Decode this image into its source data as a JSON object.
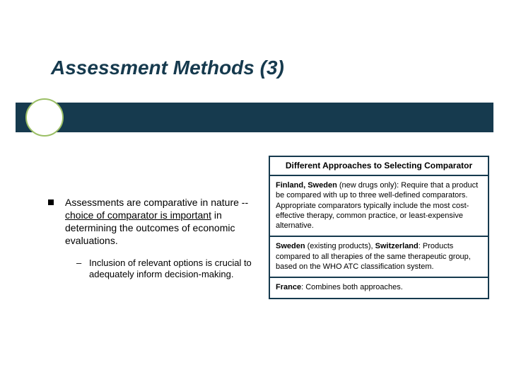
{
  "colors": {
    "dark": "#163a4e",
    "accent": "#9bbf65",
    "bg": "#ffffff",
    "text": "#000000"
  },
  "title": "Assessment Methods (3)",
  "main": {
    "point_prefix": "Assessments are comparative in nature -- ",
    "point_underlined": "choice of comparator is important",
    "point_suffix": " in determining the outcomes of economic evaluations.",
    "sub_point": "Inclusion of relevant options is crucial to adequately inform decision-making."
  },
  "table": {
    "header": "Different Approaches to Selecting Comparator",
    "rows": [
      {
        "bold": "Finland, Sweden",
        "after_bold": " (new drugs only): Require that a product be compared with up to three well-defined comparators.  Appropriate comparators typically include the most cost-effective therapy, common practice, or least-expensive alternative."
      },
      {
        "bold": "Sweden",
        "mid": " (existing products), ",
        "bold2": "Switzerland",
        "after": ": Products compared to all therapies of the same therapeutic group, based on the WHO ATC classification system."
      },
      {
        "bold": "France",
        "after_bold": ": Combines both approaches."
      }
    ]
  }
}
